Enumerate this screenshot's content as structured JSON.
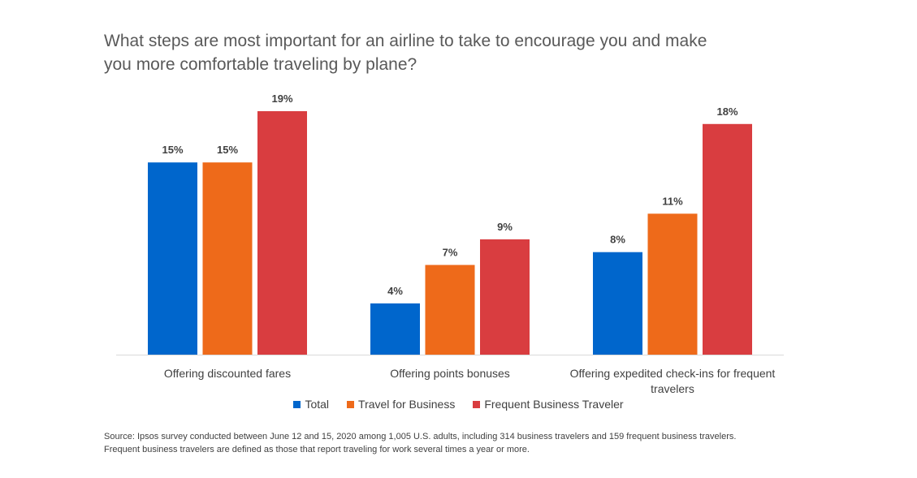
{
  "title_line1": "What steps are most important for an airline to take to encourage you and make",
  "title_line2": "you more comfortable traveling by plane?",
  "chart_data": {
    "type": "bar",
    "title": "What steps are most important for an airline to take to encourage you and make you more comfortable traveling by plane?",
    "categories": [
      [
        "Offering discounted fares"
      ],
      [
        "Offering points bonuses"
      ],
      [
        "Offering expedited check-ins for frequent",
        "travelers"
      ]
    ],
    "series": [
      {
        "name": "Total",
        "color": "#0066CC",
        "values": [
          15,
          4,
          8
        ],
        "labels": [
          "15%",
          "4%",
          "8%"
        ]
      },
      {
        "name": "Travel for Business",
        "color": "#EE6A1A",
        "values": [
          15,
          7,
          11
        ],
        "labels": [
          "15%",
          "7%",
          "11%"
        ]
      },
      {
        "name": "Frequent Business Traveler",
        "color": "#D93D40",
        "values": [
          19,
          9,
          18
        ],
        "labels": [
          "19%",
          "9%",
          "18%"
        ]
      }
    ],
    "ylim": [
      0,
      19
    ],
    "xlabel": "",
    "ylabel": "",
    "grid": false,
    "legend": "bottom"
  },
  "source": {
    "line1": "Source: Ipsos survey conducted between June 12 and 15, 2020 among 1,005 U.S. adults, including 314 business travelers and 159 frequent business travelers.",
    "line2": "Frequent business travelers are defined as those that report traveling for work several times a year or more."
  }
}
